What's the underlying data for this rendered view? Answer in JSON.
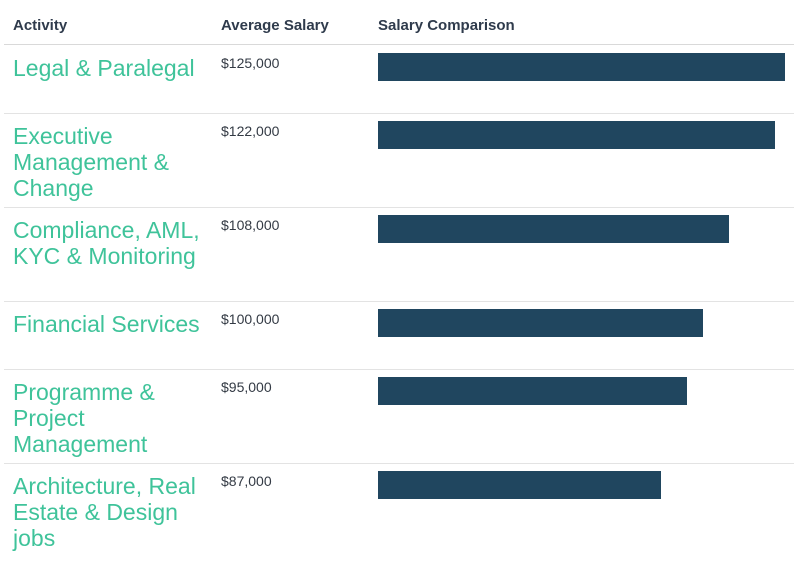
{
  "header": {
    "activity": "Activity",
    "salary": "Average Salary",
    "comparison": "Salary Comparison"
  },
  "chart_data": {
    "type": "bar",
    "orientation": "horizontal",
    "categories": [
      "Legal & Paralegal",
      "Executive Management & Change",
      "Compliance, AML, KYC & Monitoring",
      "Financial Services",
      "Programme & Project Management",
      "Architecture, Real Estate & Design jobs"
    ],
    "values": [
      125000,
      122000,
      108000,
      100000,
      95000,
      87000
    ],
    "value_labels": [
      "$125,000",
      "$122,000",
      "$108,000",
      "$100,000",
      "$95,000",
      "$87,000"
    ],
    "xlim": [
      0,
      126000
    ],
    "grid": false,
    "bar_color": "#20465f",
    "label_color": "#3fc39a"
  }
}
